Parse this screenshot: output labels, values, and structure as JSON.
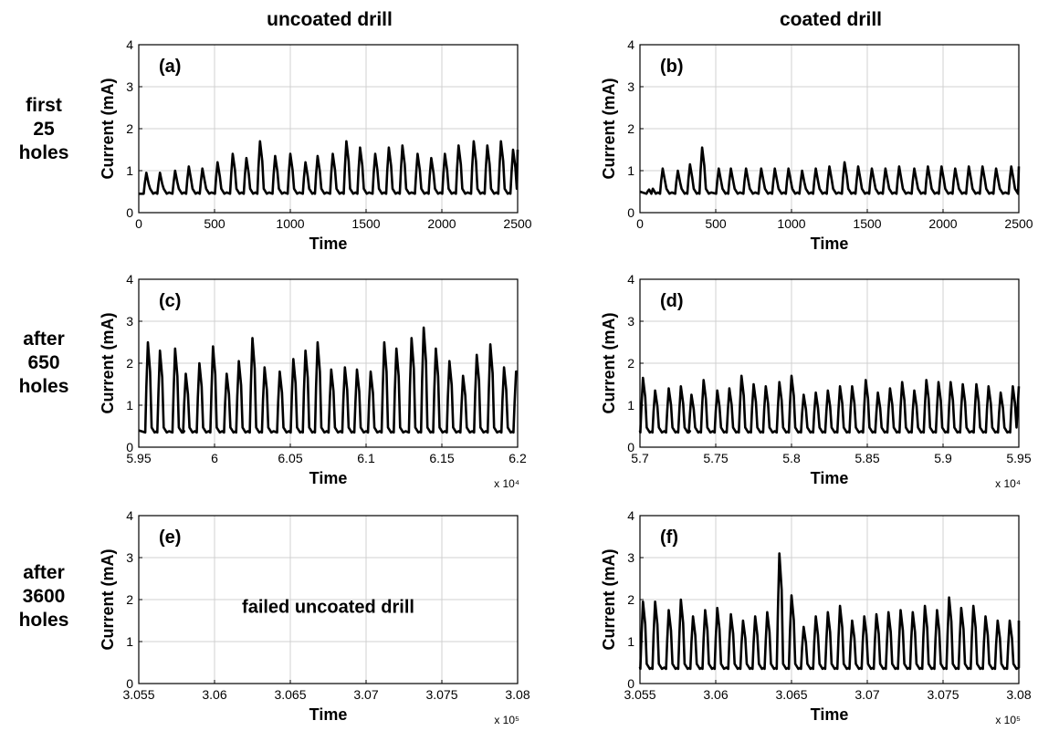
{
  "column_headers": [
    "uncoated drill",
    "coated drill"
  ],
  "row_labels": [
    [
      "first",
      "25",
      "holes"
    ],
    [
      "after",
      "650",
      "holes"
    ],
    [
      "after",
      "3600",
      "holes"
    ]
  ],
  "chart_data": [
    {
      "type": "line",
      "panel_label": "(a)",
      "column": 0,
      "row": 0,
      "xlabel": "Time",
      "ylabel": "Current (mA)",
      "xlim": [
        0,
        2500
      ],
      "ylim": [
        0,
        4
      ],
      "xticks": [
        0,
        500,
        1000,
        1500,
        2000,
        2500
      ],
      "xtick_labels": [
        "0",
        "500",
        "1000",
        "1500",
        "2000",
        "2500"
      ],
      "yticks": [
        0,
        1,
        2,
        3,
        4
      ],
      "ytick_labels": [
        "0",
        "1",
        "2",
        "3",
        "4"
      ],
      "x_multiplier": "",
      "grid": true,
      "line_color": "#000000",
      "series": [
        {
          "start_value": 0.45,
          "baseline": 0.45,
          "end_value": 1.5,
          "peak_x": [
            50,
            140,
            240,
            330,
            420,
            520,
            620,
            710,
            800,
            900,
            1000,
            1100,
            1180,
            1280,
            1370,
            1460,
            1560,
            1650,
            1740,
            1840,
            1930,
            2020,
            2110,
            2210,
            2300,
            2390,
            2470
          ],
          "peak_y": [
            0.95,
            0.95,
            1.0,
            1.1,
            1.05,
            1.2,
            1.4,
            1.3,
            1.7,
            1.35,
            1.4,
            1.2,
            1.35,
            1.4,
            1.7,
            1.55,
            1.4,
            1.55,
            1.6,
            1.4,
            1.3,
            1.4,
            1.6,
            1.7,
            1.6,
            1.7,
            1.5
          ]
        }
      ]
    },
    {
      "type": "line",
      "panel_label": "(b)",
      "column": 1,
      "row": 0,
      "xlabel": "Time",
      "ylabel": "Current (mA)",
      "xlim": [
        0,
        2500
      ],
      "ylim": [
        0,
        4
      ],
      "xticks": [
        0,
        500,
        1000,
        1500,
        2000,
        2500
      ],
      "xtick_labels": [
        "0",
        "500",
        "1000",
        "1500",
        "2000",
        "2500"
      ],
      "yticks": [
        0,
        1,
        2,
        3,
        4
      ],
      "ytick_labels": [
        "0",
        "1",
        "2",
        "3",
        "4"
      ],
      "x_multiplier": "",
      "grid": true,
      "line_color": "#000000",
      "series": [
        {
          "start_value": 0.5,
          "baseline": 0.45,
          "end_value": 1.1,
          "peak_x": [
            60,
            150,
            250,
            330,
            410,
            520,
            600,
            700,
            800,
            890,
            980,
            1070,
            1160,
            1250,
            1350,
            1440,
            1530,
            1620,
            1710,
            1810,
            1900,
            1990,
            2080,
            2170,
            2260,
            2350,
            2450
          ],
          "peak_y": [
            0.55,
            1.05,
            1.0,
            1.15,
            1.55,
            1.05,
            1.05,
            1.05,
            1.05,
            1.05,
            1.05,
            1.0,
            1.05,
            1.1,
            1.2,
            1.1,
            1.05,
            1.05,
            1.1,
            1.05,
            1.1,
            1.1,
            1.05,
            1.1,
            1.1,
            1.05,
            1.1
          ]
        }
      ]
    },
    {
      "type": "line",
      "panel_label": "(c)",
      "column": 0,
      "row": 1,
      "xlabel": "Time",
      "ylabel": "Current (mA)",
      "xlim": [
        59500,
        62000
      ],
      "ylim": [
        0,
        4
      ],
      "xticks": [
        59500,
        60000,
        60500,
        61000,
        61500,
        62000
      ],
      "xtick_labels": [
        "5.95",
        "6",
        "6.05",
        "6.1",
        "6.15",
        "6.2"
      ],
      "yticks": [
        0,
        1,
        2,
        3,
        4
      ],
      "ytick_labels": [
        "0",
        "1",
        "2",
        "3",
        "4"
      ],
      "x_multiplier": "x 10⁴",
      "grid": true,
      "line_color": "#000000",
      "series": [
        {
          "start_value": 0.4,
          "baseline": 0.35,
          "end_value": 1.8,
          "peak_x": [
            59560,
            59640,
            59740,
            59810,
            59900,
            59990,
            60080,
            60160,
            60250,
            60330,
            60430,
            60520,
            60600,
            60680,
            60770,
            60860,
            60940,
            61030,
            61120,
            61200,
            61300,
            61380,
            61460,
            61550,
            61640,
            61730,
            61820,
            61910,
            61990
          ],
          "peak_y": [
            2.5,
            2.3,
            2.35,
            1.75,
            2.0,
            2.4,
            1.75,
            2.05,
            2.6,
            1.9,
            1.8,
            2.1,
            2.3,
            2.5,
            1.85,
            1.9,
            1.85,
            1.8,
            2.5,
            2.35,
            2.6,
            2.85,
            2.35,
            2.05,
            1.7,
            2.2,
            2.45,
            1.9,
            1.8
          ]
        }
      ]
    },
    {
      "type": "line",
      "panel_label": "(d)",
      "column": 1,
      "row": 1,
      "xlabel": "Time",
      "ylabel": "Current (mA)",
      "xlim": [
        57000,
        59500
      ],
      "ylim": [
        0,
        4
      ],
      "xticks": [
        57000,
        57500,
        58000,
        58500,
        59000,
        59500
      ],
      "xtick_labels": [
        "5.7",
        "5.75",
        "5.8",
        "5.85",
        "5.9",
        "5.95"
      ],
      "yticks": [
        0,
        1,
        2,
        3,
        4
      ],
      "ytick_labels": [
        "0",
        "1",
        "2",
        "3",
        "4"
      ],
      "x_multiplier": "x 10⁴",
      "grid": true,
      "line_color": "#000000",
      "series": [
        {
          "start_value": 0.4,
          "baseline": 0.35,
          "end_value": 1.45,
          "peak_x": [
            57020,
            57100,
            57190,
            57270,
            57340,
            57420,
            57510,
            57590,
            57670,
            57750,
            57830,
            57920,
            58000,
            58080,
            58160,
            58240,
            58320,
            58400,
            58490,
            58570,
            58650,
            58730,
            58810,
            58890,
            58970,
            59050,
            59130,
            59220,
            59300,
            59380,
            59460
          ],
          "peak_y": [
            1.65,
            1.35,
            1.4,
            1.45,
            1.25,
            1.6,
            1.35,
            1.4,
            1.7,
            1.5,
            1.45,
            1.55,
            1.7,
            1.25,
            1.3,
            1.35,
            1.45,
            1.45,
            1.6,
            1.3,
            1.4,
            1.55,
            1.35,
            1.6,
            1.55,
            1.55,
            1.5,
            1.5,
            1.45,
            1.3,
            1.45
          ]
        }
      ]
    },
    {
      "type": "line",
      "panel_label": "(e)",
      "column": 0,
      "row": 2,
      "xlabel": "Time",
      "ylabel": "Current (mA)",
      "xlim": [
        305500,
        308000
      ],
      "ylim": [
        0,
        4
      ],
      "xticks": [
        305500,
        306000,
        306500,
        307000,
        307500,
        308000
      ],
      "xtick_labels": [
        "3.055",
        "3.06",
        "3.065",
        "3.07",
        "3.075",
        "3.08"
      ],
      "yticks": [
        0,
        1,
        2,
        3,
        4
      ],
      "ytick_labels": [
        "0",
        "1",
        "2",
        "3",
        "4"
      ],
      "x_multiplier": "x 10⁵",
      "grid": true,
      "line_color": "#000000",
      "annotation": "failed uncoated drill",
      "series": []
    },
    {
      "type": "line",
      "panel_label": "(f)",
      "column": 1,
      "row": 2,
      "xlabel": "Time",
      "ylabel": "Current (mA)",
      "xlim": [
        305500,
        308000
      ],
      "ylim": [
        0,
        4
      ],
      "xticks": [
        305500,
        306000,
        306500,
        307000,
        307500,
        308000
      ],
      "xtick_labels": [
        "3.055",
        "3.06",
        "3.065",
        "3.07",
        "3.075",
        "3.08"
      ],
      "yticks": [
        0,
        1,
        2,
        3,
        4
      ],
      "ytick_labels": [
        "0",
        "1",
        "2",
        "3",
        "4"
      ],
      "x_multiplier": "x 10⁵",
      "grid": true,
      "line_color": "#000000",
      "series": [
        {
          "start_value": 0.4,
          "baseline": 0.35,
          "end_value": 1.5,
          "peak_x": [
            305520,
            305600,
            305690,
            305770,
            305850,
            305930,
            306010,
            306100,
            306180,
            306260,
            306340,
            306420,
            306500,
            306580,
            306660,
            306740,
            306820,
            306900,
            306980,
            307060,
            307140,
            307220,
            307300,
            307380,
            307460,
            307540,
            307620,
            307700,
            307780,
            307860,
            307940
          ],
          "peak_y": [
            1.95,
            1.95,
            1.75,
            2.0,
            1.6,
            1.75,
            1.8,
            1.65,
            1.5,
            1.6,
            1.7,
            3.1,
            2.1,
            1.35,
            1.6,
            1.7,
            1.85,
            1.5,
            1.6,
            1.65,
            1.7,
            1.75,
            1.7,
            1.85,
            1.75,
            2.05,
            1.8,
            1.85,
            1.6,
            1.5,
            1.5
          ]
        }
      ]
    }
  ]
}
